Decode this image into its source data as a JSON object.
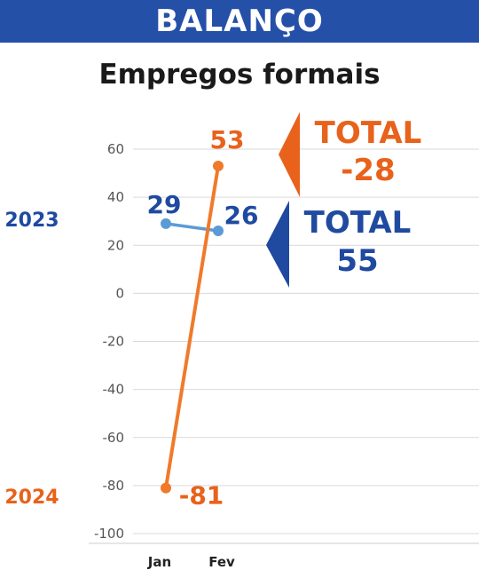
{
  "header": {
    "title": "BALANÇO"
  },
  "colors": {
    "header_bg": "#2550a8",
    "series_2023": "#5b9bd5",
    "series_2023_text": "#1f4aa0",
    "series_2024": "#f07a2a",
    "series_2024_text": "#e8621c"
  },
  "chart_data": {
    "type": "line",
    "title": "Empregos formais",
    "categories": [
      "Jan",
      "Fev"
    ],
    "yticks": [
      60,
      40,
      20,
      0,
      -20,
      -40,
      -60,
      -80,
      -100
    ],
    "ylim": [
      -100,
      60
    ],
    "grid": true,
    "series": [
      {
        "name": "2023",
        "values": [
          29,
          26
        ],
        "labels": [
          "29",
          "26"
        ]
      },
      {
        "name": "2024",
        "values": [
          -81,
          53
        ],
        "labels": [
          "-81",
          "53"
        ]
      }
    ],
    "annotations": [
      {
        "series": "2024",
        "lines": [
          "TOTAL",
          "-28"
        ]
      },
      {
        "series": "2023",
        "lines": [
          "TOTAL",
          "55"
        ]
      }
    ]
  }
}
